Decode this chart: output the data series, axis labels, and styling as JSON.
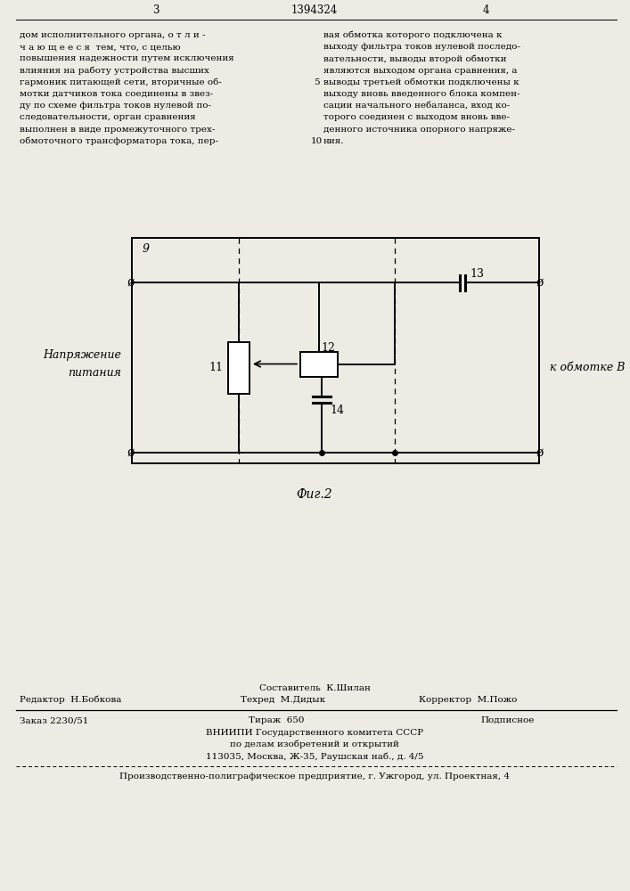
{
  "background_color": "#eeebe5",
  "page_number_left": "3",
  "page_number_center": "1394324",
  "page_number_right": "4",
  "text_left": [
    "дом исполнительного органа, о т л и -",
    "ч а ю щ е е с я  тем, что, с целью",
    "повышения надежности путем исключения",
    "влияния на работу устройства высших",
    "гармоник питающей сети, вторичные об-",
    "мотки датчиков тока соединены в звез-",
    "ду по схеме фильтра токов нулевой по-",
    "следовательности, орган сравнения",
    "выполнен в виде промежуточного трех-",
    "обмоточного трансформатора тока, пер-"
  ],
  "text_right": [
    "вая обмотка которого подключена к",
    "выходу фильтра токов нулевой последо-",
    "вательности, выводы второй обмотки",
    "являются выходом органа сравнения, а",
    "выводы третьей обмотки подключены к",
    "выходу вновь введенного блока компен-",
    "сации начального небаланса, вход ко-",
    "торого соединен с выходом вновь вве-",
    "денного источника опорного напряже-",
    "ния."
  ],
  "left_label_line1": "Напряжение",
  "left_label_line2": "питания",
  "right_label": "к обмотке B",
  "label_9": "9",
  "label_11": "11",
  "label_12": "12",
  "label_13": "13",
  "label_14": "14",
  "caption": "Фиг.2",
  "footer_col1_row1": "Редактор  Н.Бобкова",
  "footer_col2_row0": "Составитель  К.Шилан",
  "footer_col2_row1": "Техред  М.Дидык",
  "footer_col3_row1": "Корректор  М.Пожо",
  "footer_zakas": "Заказ 2230/51",
  "footer_tirazh": "Тираж  650",
  "footer_podpisnoe": "Подписное",
  "footer_vniip1": "ВНИИПИ Государственного комитета СССР",
  "footer_vniip2": "по делам изобретений и открытий",
  "footer_vniip3": "113035, Москва, Ж-35, Раушская наб., д. 4/5",
  "footer_last": "Производственно-полиграфическое предприятие, г. Ужгород, ул. Проектная, 4"
}
